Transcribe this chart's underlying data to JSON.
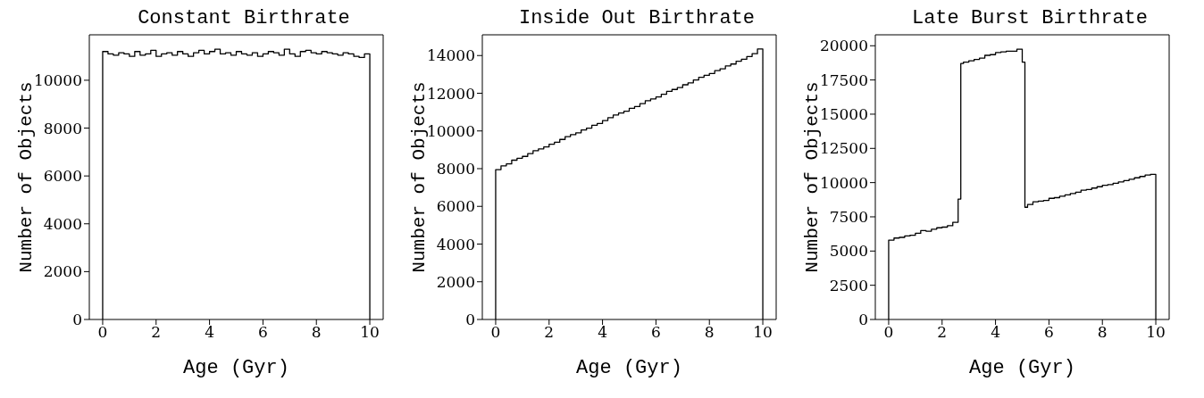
{
  "chart_data": [
    {
      "type": "histogram",
      "title": "Constant Birthrate",
      "xlabel": "Age (Gyr)",
      "ylabel": "Number of Objects",
      "color": "#000000",
      "xlim": [
        -0.5,
        10.5
      ],
      "xticks": [
        0,
        2,
        4,
        6,
        8,
        10
      ],
      "ylim": [
        0,
        11900
      ],
      "yticks": [
        0,
        2000,
        4000,
        6000,
        8000,
        10000
      ],
      "grid": false,
      "bins": [
        0,
        0.2,
        0.4,
        0.6,
        0.8,
        1,
        1.2,
        1.4,
        1.6,
        1.8,
        2,
        2.2,
        2.4,
        2.6,
        2.8,
        3,
        3.2,
        3.4,
        3.6,
        3.8,
        4,
        4.2,
        4.4,
        4.6,
        4.8,
        5,
        5.2,
        5.4,
        5.6,
        5.8,
        6,
        6.2,
        6.4,
        6.6,
        6.8,
        7,
        7.2,
        7.4,
        7.6,
        7.8,
        8,
        8.2,
        8.4,
        8.6,
        8.8,
        9,
        9.2,
        9.4,
        9.6,
        9.8,
        10
      ],
      "values": [
        11200,
        11100,
        11050,
        11150,
        11100,
        11000,
        11200,
        11050,
        11100,
        11250,
        11000,
        11100,
        11150,
        11050,
        11200,
        11100,
        11000,
        11150,
        11250,
        11100,
        11200,
        11300,
        11100,
        11150,
        11050,
        11200,
        11100,
        11050,
        11150,
        11000,
        11100,
        11200,
        11150,
        11050,
        11300,
        11100,
        11000,
        11200,
        11250,
        11150,
        11100,
        11200,
        11150,
        11100,
        11050,
        11150,
        11100,
        11000,
        10950,
        11100
      ]
    },
    {
      "type": "histogram",
      "title": "Inside Out Birthrate",
      "xlabel": "Age (Gyr)",
      "ylabel": "Number of Objects",
      "color": "#000000",
      "xlim": [
        -0.5,
        10.5
      ],
      "xticks": [
        0,
        2,
        4,
        6,
        8,
        10
      ],
      "ylim": [
        0,
        15100
      ],
      "yticks": [
        0,
        2000,
        4000,
        6000,
        8000,
        10000,
        12000,
        14000
      ],
      "grid": false,
      "bins": [
        0,
        0.2,
        0.4,
        0.6,
        0.8,
        1,
        1.2,
        1.4,
        1.6,
        1.8,
        2,
        2.2,
        2.4,
        2.6,
        2.8,
        3,
        3.2,
        3.4,
        3.6,
        3.8,
        4,
        4.2,
        4.4,
        4.6,
        4.8,
        5,
        5.2,
        5.4,
        5.6,
        5.8,
        6,
        6.2,
        6.4,
        6.6,
        6.8,
        7,
        7.2,
        7.4,
        7.6,
        7.8,
        8,
        8.2,
        8.4,
        8.6,
        8.8,
        9,
        9.2,
        9.4,
        9.6,
        9.8,
        10
      ],
      "values": [
        7950,
        8150,
        8250,
        8450,
        8550,
        8650,
        8800,
        8950,
        9050,
        9150,
        9300,
        9400,
        9550,
        9700,
        9800,
        9900,
        10050,
        10150,
        10300,
        10400,
        10550,
        10700,
        10850,
        10950,
        11050,
        11200,
        11300,
        11450,
        11600,
        11700,
        11800,
        11950,
        12100,
        12200,
        12300,
        12450,
        12550,
        12700,
        12850,
        12950,
        13050,
        13200,
        13300,
        13450,
        13550,
        13700,
        13800,
        13950,
        14100,
        14350
      ]
    },
    {
      "type": "histogram",
      "title": "Late Burst Birthrate",
      "xlabel": "Age (Gyr)",
      "ylabel": "Number of Objects",
      "color": "#000000",
      "xlim": [
        -0.5,
        10.5
      ],
      "xticks": [
        0,
        2,
        4,
        6,
        8,
        10
      ],
      "ylim": [
        0,
        20800
      ],
      "yticks": [
        0,
        2500,
        5000,
        7500,
        10000,
        12500,
        15000,
        17500,
        20000
      ],
      "grid": false,
      "bins": [
        0,
        0.2,
        0.4,
        0.6,
        0.8,
        1,
        1.2,
        1.4,
        1.6,
        1.8,
        2,
        2.2,
        2.4,
        2.6,
        2.7,
        2.8,
        3,
        3.2,
        3.4,
        3.6,
        3.8,
        4,
        4.2,
        4.4,
        4.6,
        4.8,
        5,
        5.1,
        5.2,
        5.4,
        5.6,
        5.8,
        6,
        6.2,
        6.4,
        6.6,
        6.8,
        7,
        7.2,
        7.4,
        7.6,
        7.8,
        8,
        8.2,
        8.4,
        8.6,
        8.8,
        9,
        9.2,
        9.4,
        9.6,
        9.8,
        10
      ],
      "values": [
        5800,
        5950,
        6000,
        6100,
        6150,
        6300,
        6500,
        6450,
        6600,
        6700,
        6750,
        6850,
        7100,
        8800,
        18700,
        18800,
        18900,
        19000,
        19100,
        19300,
        19350,
        19500,
        19550,
        19600,
        19600,
        19750,
        18800,
        8200,
        8400,
        8600,
        8650,
        8700,
        8850,
        8900,
        9000,
        9100,
        9200,
        9300,
        9450,
        9500,
        9600,
        9700,
        9800,
        9850,
        9950,
        10050,
        10150,
        10250,
        10350,
        10450,
        10550,
        10600
      ]
    }
  ]
}
